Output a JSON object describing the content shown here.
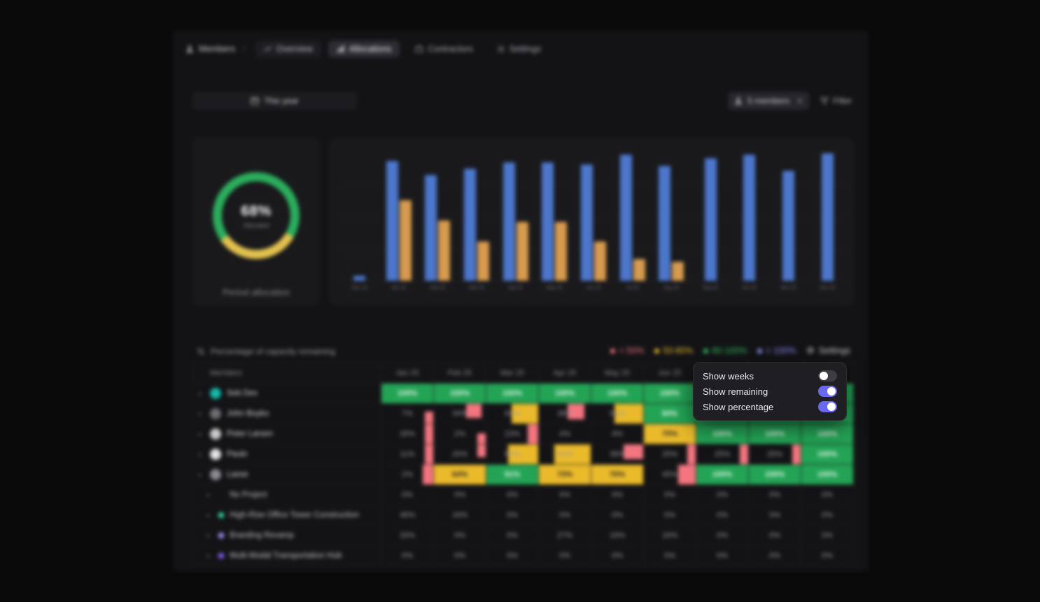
{
  "header": {
    "breadcrumb": "Members",
    "tabs": [
      {
        "label": "Overview",
        "icon": "chart-line-icon",
        "style": "pill"
      },
      {
        "label": "Allocations",
        "icon": "bars-icon",
        "style": "active"
      },
      {
        "label": "Contractors",
        "icon": "briefcase-icon",
        "style": "plain"
      },
      {
        "label": "Settings",
        "icon": "gear-icon",
        "style": "plain"
      }
    ]
  },
  "controls": {
    "period_select": "This year",
    "members_chip": "5 members",
    "filter_label": "Filter"
  },
  "donut": {
    "value": "68%",
    "subtitle": "Allocated",
    "caption": "Period allocation",
    "green": "#2bad5c",
    "yellow": "#e2c14e",
    "green_pct": 68
  },
  "chart_data": [
    {
      "type": "pie",
      "variant": "donut",
      "title": "Period allocation",
      "center_label": "68%",
      "center_sublabel": "Allocated",
      "slices": [
        {
          "label": "allocated",
          "value": 68,
          "color": "#2bad5c"
        },
        {
          "label": "unallocated",
          "value": 32,
          "color": "#e2c14e"
        }
      ]
    },
    {
      "type": "bar",
      "title": "",
      "xlabel": "",
      "ylabel": "",
      "ylim": [
        0,
        100
      ],
      "grid": true,
      "legend_position": "none",
      "categories": [
        "Dec 24",
        "Jan 25",
        "Feb 25",
        "Mar 25",
        "Apr 25",
        "May 25",
        "Jun 25",
        "Jul 25",
        "Aug 25",
        "Sep 25",
        "Oct 25",
        "Nov 25",
        "Dec 25"
      ],
      "series": [
        {
          "name": "capacity",
          "color": "#4c77cc",
          "values": [
            4,
            94,
            83,
            88,
            93,
            93,
            91,
            99,
            90,
            96,
            99,
            86,
            100
          ]
        },
        {
          "name": "scheduled",
          "color": "#d69a4e",
          "values": [
            0,
            63,
            47,
            31,
            46,
            46,
            31,
            17,
            15,
            0,
            0,
            0,
            0
          ]
        }
      ]
    }
  ],
  "capacity": {
    "heading": "Percentage of capacity remaining",
    "legend": [
      {
        "label": "< 50%",
        "color": "#f3717b"
      },
      {
        "label": "50-80%",
        "color": "#eaba2b"
      },
      {
        "label": "80-100%",
        "color": "#2fbf5c"
      },
      {
        "label": "> 100%",
        "color": "#8c8cf9"
      }
    ],
    "settings_label": "Settings",
    "table": {
      "members_header": "Members",
      "months": [
        "Jan 25",
        "Feb 25",
        "Mar 25",
        "Apr 25",
        "May 25",
        "Jun 25",
        "Jul 25",
        "Aug 25",
        "Sep 25"
      ],
      "rows": [
        {
          "name": "Seb Dev",
          "kind": "member",
          "avatar_color": "#14b8a6",
          "cells": [
            {
              "t": "100%",
              "bg": "green"
            },
            {
              "t": "100%",
              "bg": "green"
            },
            {
              "t": "100%",
              "bg": "green"
            },
            {
              "t": "100%",
              "bg": "green"
            },
            {
              "t": "100%",
              "bg": "green"
            },
            {
              "t": "100%",
              "bg": "green"
            },
            {
              "t": "100%",
              "bg": "green"
            },
            {
              "t": "100%",
              "bg": "green"
            },
            {
              "t": "100%",
              "bg": "green"
            }
          ]
        },
        {
          "name": "John Boyko",
          "kind": "member",
          "avatar_color": "#6b6b72",
          "cells": [
            {
              "t": "7%",
              "bg": "dark",
              "blocks": [
                [
                  "red",
                  0.84,
                  0.16,
                  0.4,
                  0.6
                ]
              ]
            },
            {
              "t": "34%",
              "bg": "dark",
              "blocks": [
                [
                  "red",
                  0.62,
                  0.3,
                  0,
                  0.72
                ]
              ]
            },
            {
              "t": "61%",
              "bg": "dark",
              "blocks": [
                [
                  "yellow",
                  0.48,
                  0.52,
                  0,
                  1
                ]
              ]
            },
            {
              "t": "38%",
              "bg": "dark",
              "blocks": [
                [
                  "red",
                  0.55,
                  0.33,
                  0,
                  0.8
                ]
              ]
            },
            {
              "t": "61%",
              "bg": "dark",
              "blocks": [
                [
                  "yellow",
                  0.45,
                  0.55,
                  0,
                  1
                ]
              ]
            },
            {
              "t": "84%",
              "bg": "green"
            },
            {
              "t": "100%",
              "bg": "green"
            },
            {
              "t": "100%",
              "bg": "green"
            },
            {
              "t": "100%",
              "bg": "green"
            }
          ]
        },
        {
          "name": "Peter Larsen",
          "kind": "member",
          "avatar_color": "#c9c9c9",
          "cells": [
            {
              "t": "26%",
              "bg": "dark",
              "blocks": [
                [
                  "red",
                  0.84,
                  0.16,
                  0,
                  1
                ]
              ]
            },
            {
              "t": "2%",
              "bg": "dark",
              "blocks": [
                [
                  "red",
                  0.84,
                  0.16,
                  0.45,
                  0.55
                ]
              ]
            },
            {
              "t": "23%",
              "bg": "dark",
              "blocks": [
                [
                  "red",
                  0.8,
                  0.2,
                  0,
                  1
                ]
              ]
            },
            {
              "t": "4%",
              "bg": "dark"
            },
            {
              "t": "4%",
              "bg": "dark"
            },
            {
              "t": "75%",
              "bg": "yellow"
            },
            {
              "t": "100%",
              "bg": "green"
            },
            {
              "t": "100%",
              "bg": "green"
            },
            {
              "t": "100%",
              "bg": "green"
            }
          ]
        },
        {
          "name": "Paulo",
          "kind": "member",
          "avatar_color": "#e3e3e6",
          "cells": [
            {
              "t": "11%",
              "bg": "dark",
              "blocks": [
                [
                  "red",
                  0.84,
                  0.16,
                  0,
                  1
                ]
              ]
            },
            {
              "t": "20%",
              "bg": "dark",
              "blocks": [
                [
                  "red",
                  0.84,
                  0.16,
                  0,
                  0.65
                ]
              ]
            },
            {
              "t": "61%",
              "bg": "dark",
              "blocks": [
                [
                  "yellow",
                  0.42,
                  0.58,
                  0,
                  1
                ]
              ]
            },
            {
              "t": "61%",
              "bg": "dark",
              "blocks": [
                [
                  "yellow",
                  0.3,
                  0.7,
                  0,
                  1
                ]
              ]
            },
            {
              "t": "38%",
              "bg": "dark",
              "blocks": [
                [
                  "red",
                  0.62,
                  0.38,
                  0,
                  0.75
                ]
              ]
            },
            {
              "t": "25%",
              "bg": "dark",
              "blocks": [
                [
                  "red",
                  0.84,
                  0.16,
                  0,
                  1
                ]
              ]
            },
            {
              "t": "25%",
              "bg": "dark",
              "blocks": [
                [
                  "red",
                  0.84,
                  0.16,
                  0,
                  1
                ]
              ]
            },
            {
              "t": "25%",
              "bg": "dark",
              "blocks": [
                [
                  "red",
                  0.84,
                  0.16,
                  0,
                  1
                ]
              ]
            },
            {
              "t": "100%",
              "bg": "green"
            }
          ]
        },
        {
          "name": "Lasse",
          "kind": "member",
          "avatar_color": "#8a8a90",
          "cells": [
            {
              "t": "2%",
              "bg": "dark",
              "blocks": [
                [
                  "red",
                  0.8,
                  0.2,
                  0,
                  1
                ]
              ]
            },
            {
              "t": "64%",
              "bg": "yellow"
            },
            {
              "t": "91%",
              "bg": "green"
            },
            {
              "t": "73%",
              "bg": "yellow"
            },
            {
              "t": "70%",
              "bg": "yellow"
            },
            {
              "t": "45%",
              "bg": "dark",
              "blocks": [
                [
                  "red",
                  0.66,
                  0.34,
                  0,
                  1
                ]
              ]
            },
            {
              "t": "100%",
              "bg": "green"
            },
            {
              "t": "100%",
              "bg": "green"
            },
            {
              "t": "100%",
              "bg": "green"
            }
          ]
        },
        {
          "name": "No Project",
          "kind": "project",
          "dot_color": null,
          "cells": [
            {
              "t": "0%",
              "bg": "dark"
            },
            {
              "t": "0%",
              "bg": "dark"
            },
            {
              "t": "0%",
              "bg": "dark"
            },
            {
              "t": "0%",
              "bg": "dark"
            },
            {
              "t": "0%",
              "bg": "dark"
            },
            {
              "t": "0%",
              "bg": "dark"
            },
            {
              "t": "0%",
              "bg": "dark"
            },
            {
              "t": "0%",
              "bg": "dark"
            },
            {
              "t": "0%",
              "bg": "dark"
            }
          ]
        },
        {
          "name": "High-Rise Office Tower Construction",
          "kind": "project",
          "dot_color": "#34d399",
          "cells": [
            {
              "t": "46%",
              "bg": "dark"
            },
            {
              "t": "16%",
              "bg": "dark"
            },
            {
              "t": "0%",
              "bg": "dark"
            },
            {
              "t": "0%",
              "bg": "dark"
            },
            {
              "t": "0%",
              "bg": "dark"
            },
            {
              "t": "0%",
              "bg": "dark"
            },
            {
              "t": "0%",
              "bg": "dark"
            },
            {
              "t": "0%",
              "bg": "dark"
            },
            {
              "t": "0%",
              "bg": "dark"
            }
          ]
        },
        {
          "name": "Branding Revamp",
          "kind": "project",
          "dot_color": "#a78bfa",
          "cells": [
            {
              "t": "33%",
              "bg": "dark"
            },
            {
              "t": "0%",
              "bg": "dark"
            },
            {
              "t": "0%",
              "bg": "dark"
            },
            {
              "t": "27%",
              "bg": "dark"
            },
            {
              "t": "16%",
              "bg": "dark"
            },
            {
              "t": "16%",
              "bg": "dark"
            },
            {
              "t": "0%",
              "bg": "dark"
            },
            {
              "t": "0%",
              "bg": "dark"
            },
            {
              "t": "0%",
              "bg": "dark"
            }
          ]
        },
        {
          "name": "Multi-Modal Transportation Hub",
          "kind": "project",
          "dot_color": "#8b5cf6",
          "cells": [
            {
              "t": "0%",
              "bg": "dark"
            },
            {
              "t": "0%",
              "bg": "dark"
            },
            {
              "t": "0%",
              "bg": "dark"
            },
            {
              "t": "0%",
              "bg": "dark"
            },
            {
              "t": "0%",
              "bg": "dark"
            },
            {
              "t": "0%",
              "bg": "dark"
            },
            {
              "t": "0%",
              "bg": "dark"
            },
            {
              "t": "0%",
              "bg": "dark"
            },
            {
              "t": "0%",
              "bg": "dark"
            }
          ]
        }
      ]
    }
  },
  "popover": {
    "items": [
      {
        "label": "Show weeks",
        "on": false
      },
      {
        "label": "Show remaining",
        "on": true
      },
      {
        "label": "Show percentage",
        "on": true
      }
    ],
    "toggle_on_color": "#6968f1"
  }
}
